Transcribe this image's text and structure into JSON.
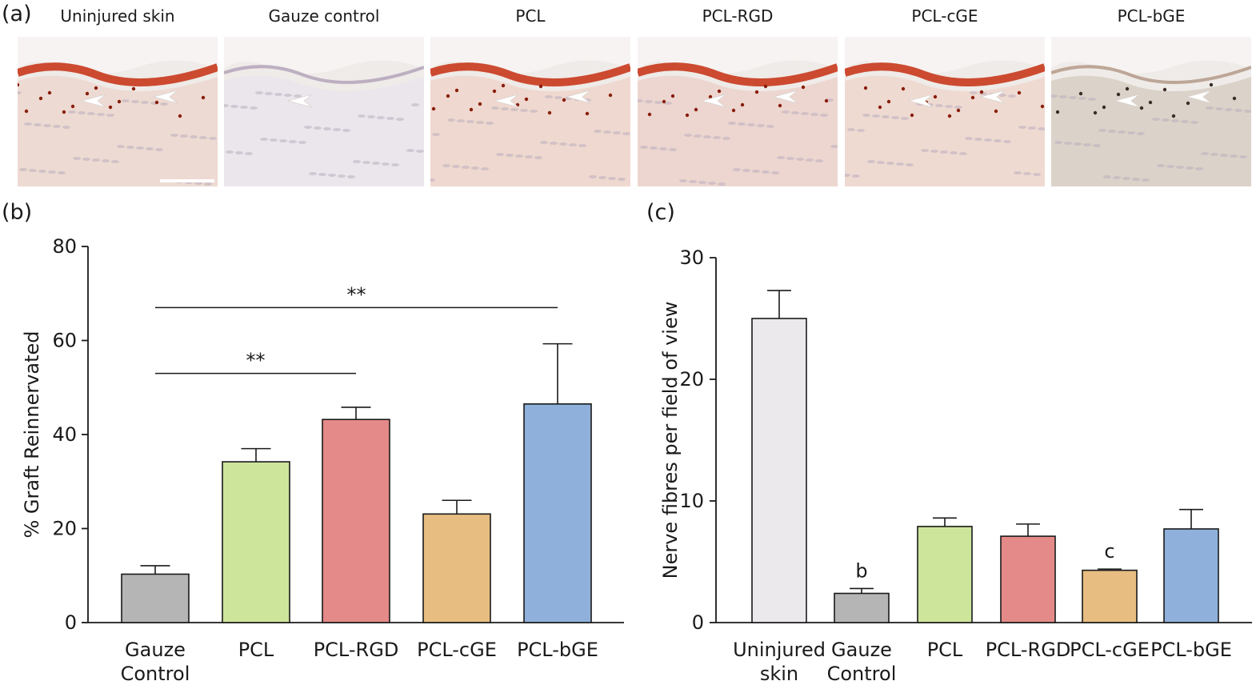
{
  "panels": {
    "a_label": "(a)",
    "b_label": "(b)",
    "c_label": "(c)"
  },
  "micrographs": [
    {
      "title": "Uninjured skin",
      "stain": "red",
      "tint": "#ecd8cf"
    },
    {
      "title": "Gauze control",
      "stain": "none",
      "tint": "#e9e6ec"
    },
    {
      "title": "PCL",
      "stain": "red",
      "tint": "#eed6cc"
    },
    {
      "title": "PCL-RGD",
      "stain": "red",
      "tint": "#ecd4cd"
    },
    {
      "title": "PCL-cGE",
      "stain": "red",
      "tint": "#eed8cf"
    },
    {
      "title": "PCL-bGE",
      "stain": "brown",
      "tint": "#d8cfc5"
    }
  ],
  "chart_data": [
    {
      "type": "bar",
      "ylabel": "% Graft Reinnervated",
      "ylim": [
        0,
        80
      ],
      "yticks": [
        0,
        20,
        40,
        60,
        80
      ],
      "categories": [
        "Gauze\nControl",
        "PCL",
        "PCL-RGD",
        "PCL-cGE",
        "PCL-bGE"
      ],
      "values": [
        10.3,
        34.2,
        43.2,
        23.1,
        46.5
      ],
      "errors": [
        1.8,
        2.8,
        2.6,
        2.9,
        12.8
      ],
      "colors": [
        "#b5b5b5",
        "#cde59b",
        "#e48a89",
        "#e7bd82",
        "#8fb0da"
      ],
      "significance": [
        {
          "from": 0,
          "to": 2,
          "y": 53,
          "label": "**"
        },
        {
          "from": 0,
          "to": 4,
          "y": 67,
          "label": "**"
        }
      ]
    },
    {
      "type": "bar",
      "ylabel": "Nerve fibres per field of view",
      "ylim": [
        0,
        30
      ],
      "yticks": [
        0,
        10,
        20,
        30
      ],
      "categories": [
        "Uninjured\nskin",
        "Gauze\nControl",
        "PCL",
        "PCL-RGD",
        "PCL-cGE",
        "PCL-bGE"
      ],
      "values": [
        25.0,
        2.4,
        7.9,
        7.1,
        4.3,
        7.7
      ],
      "errors": [
        2.3,
        0.4,
        0.7,
        1.0,
        0.1,
        1.6
      ],
      "colors": [
        "#ebe9ec",
        "#b5b5b5",
        "#cde59b",
        "#e48a89",
        "#e7bd82",
        "#8fb0da"
      ],
      "bar_letters": [
        "",
        "b",
        "",
        "",
        "c",
        ""
      ]
    }
  ]
}
